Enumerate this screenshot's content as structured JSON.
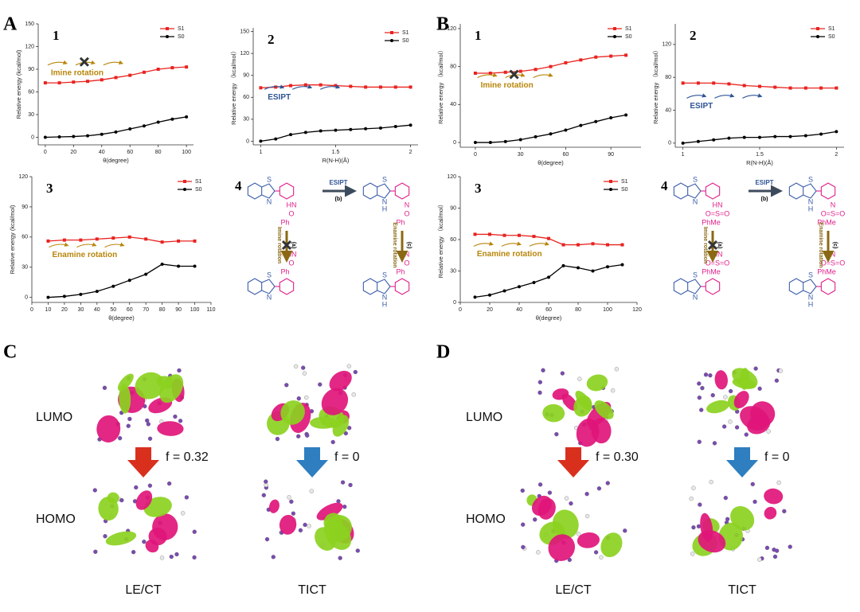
{
  "panel_labels": [
    "A",
    "B",
    "C",
    "D"
  ],
  "chart_data": [
    {
      "type": "line",
      "number": "1",
      "xlabel": "θ(degree)",
      "ylabel": "Relative energy (kcal/mol)",
      "x": [
        0,
        10,
        20,
        30,
        40,
        50,
        60,
        70,
        80,
        90,
        100
      ],
      "xlim": [
        -5,
        105
      ],
      "xticks": [
        0,
        20,
        40,
        60,
        80,
        100
      ],
      "ylim": [
        -10,
        150
      ],
      "yticks": [
        0,
        30,
        60,
        90,
        120,
        150
      ],
      "legend": "upper right",
      "annotation": {
        "text": "Imine rotation",
        "color": "#b8860b"
      },
      "series": [
        {
          "name": "S1",
          "color": "#e8231f",
          "marker": "square",
          "values": [
            72,
            72,
            73,
            74,
            76,
            79,
            82,
            86,
            90,
            92,
            93
          ]
        },
        {
          "name": "S0",
          "color": "#000000",
          "marker": "circle",
          "values": [
            0,
            0.5,
            1,
            2,
            4,
            7,
            11,
            15,
            20,
            24,
            27
          ]
        }
      ]
    },
    {
      "type": "line",
      "number": "2",
      "xlabel": "R(N-H)(Å)",
      "ylabel": "Relative energy （kcal/mol）",
      "x": [
        1.0,
        1.1,
        1.2,
        1.3,
        1.4,
        1.5,
        1.6,
        1.7,
        1.8,
        1.9,
        2.0
      ],
      "xlim": [
        0.95,
        2.05
      ],
      "xticks": [
        1.0,
        1.5,
        2.0
      ],
      "ylim": [
        -5,
        155
      ],
      "yticks": [
        0,
        30,
        60,
        90,
        120,
        150
      ],
      "legend": "upper right",
      "annotation": {
        "text": "ESIPT",
        "color": "#2f5597"
      },
      "series": [
        {
          "name": "S1",
          "color": "#e8231f",
          "marker": "square",
          "values": [
            73,
            74,
            76,
            77,
            77,
            76,
            75,
            74,
            74,
            74,
            74
          ]
        },
        {
          "name": "S0",
          "color": "#000000",
          "marker": "circle",
          "values": [
            0,
            3,
            9,
            12,
            14,
            15,
            16,
            17,
            18,
            20,
            22
          ]
        }
      ]
    },
    {
      "type": "line",
      "number": "1",
      "xlabel": "θ(degree)",
      "ylabel": "Relative energy （kcal/mol）",
      "x": [
        0,
        10,
        20,
        30,
        40,
        50,
        60,
        70,
        80,
        90,
        100
      ],
      "xlim": [
        -10,
        110
      ],
      "xticks": [
        0,
        30,
        60,
        90
      ],
      "ylim": [
        -5,
        125
      ],
      "yticks": [
        0,
        40,
        80,
        120
      ],
      "legend": "upper right",
      "annotation": {
        "text": "Imine rotation",
        "color": "#b8860b"
      },
      "series": [
        {
          "name": "S1",
          "color": "#e8231f",
          "marker": "square",
          "values": [
            73,
            73,
            74,
            75,
            77,
            80,
            84,
            87,
            90,
            91,
            92
          ]
        },
        {
          "name": "S0",
          "color": "#000000",
          "marker": "circle",
          "values": [
            0,
            0,
            1,
            3,
            6,
            9,
            13,
            18,
            22,
            26,
            29
          ]
        }
      ]
    },
    {
      "type": "line",
      "number": "2",
      "xlabel": "R(N-H)(Å)",
      "ylabel": "Relative energy （kcal/mol）",
      "x": [
        1.0,
        1.1,
        1.2,
        1.3,
        1.4,
        1.5,
        1.6,
        1.7,
        1.8,
        1.9,
        2.0
      ],
      "xlim": [
        0.95,
        2.05
      ],
      "xticks": [
        1.0,
        1.5,
        2.0
      ],
      "ylim": [
        -5,
        145
      ],
      "yticks": [
        0,
        40,
        80,
        120
      ],
      "legend": "upper right",
      "annotation": {
        "text": "ESIPT",
        "color": "#2f5597"
      },
      "series": [
        {
          "name": "S1",
          "color": "#e8231f",
          "marker": "square",
          "values": [
            73,
            73,
            73,
            72,
            70,
            69,
            68,
            67,
            67,
            67,
            67
          ]
        },
        {
          "name": "S0",
          "color": "#000000",
          "marker": "circle",
          "values": [
            0,
            2,
            4,
            6,
            7,
            7,
            8,
            8,
            9,
            11,
            14
          ]
        }
      ]
    },
    {
      "type": "line",
      "number": "3",
      "xlabel": "θ(degree)",
      "ylabel": "Relative energy (kcal/mol)",
      "x": [
        10,
        20,
        30,
        40,
        50,
        60,
        70,
        80,
        90,
        100
      ],
      "xlim": [
        0,
        110
      ],
      "xticks": [
        0,
        10,
        20,
        30,
        40,
        50,
        60,
        70,
        80,
        90,
        100,
        110
      ],
      "ylim": [
        -5,
        120
      ],
      "yticks": [
        0,
        30,
        60,
        90,
        120
      ],
      "legend": "upper right",
      "annotation": {
        "text": "Enamine rotation",
        "color": "#b8860b"
      },
      "series": [
        {
          "name": "S1",
          "color": "#e8231f",
          "marker": "square",
          "values": [
            56,
            57,
            57,
            58,
            59,
            60,
            58,
            55,
            56,
            56
          ]
        },
        {
          "name": "S0",
          "color": "#000000",
          "marker": "circle",
          "values": [
            0,
            1,
            3,
            6,
            11,
            17,
            23,
            33,
            31,
            31
          ]
        }
      ]
    },
    {
      "type": "line",
      "number": "3",
      "xlabel": "θ(degree)",
      "ylabel": "Relative energy （kcal/mol）",
      "x": [
        10,
        20,
        30,
        40,
        50,
        60,
        70,
        80,
        90,
        100,
        110
      ],
      "xlim": [
        0,
        120
      ],
      "xticks": [
        0,
        20,
        40,
        60,
        80,
        100,
        120
      ],
      "ylim": [
        0,
        120
      ],
      "yticks": [
        0,
        30,
        60,
        90,
        120
      ],
      "legend": "upper right",
      "annotation": {
        "text": "Enamine rotation",
        "color": "#b8860b"
      },
      "series": [
        {
          "name": "S1",
          "color": "#e8231f",
          "marker": "square",
          "values": [
            65,
            65,
            64,
            64,
            63,
            61,
            55,
            55,
            56,
            55,
            55
          ]
        },
        {
          "name": "S0",
          "color": "#000000",
          "marker": "circle",
          "values": [
            5,
            7,
            11,
            15,
            19,
            24,
            35,
            33,
            30,
            34,
            36
          ]
        }
      ]
    }
  ],
  "schemes": [
    {
      "number": "4",
      "top_arrow": "ESIPT",
      "top_tag": "(b)",
      "left_arrow": "Imine rotation",
      "left_tag": "(a)",
      "right_arrow": "Enamine rotation",
      "right_tag": "(c)",
      "molecules": [
        {
          "ring": [
            "S",
            "N"
          ],
          "side": [
            "HN",
            "O",
            "Ph"
          ]
        },
        {
          "ring": [
            "S",
            "N",
            "H"
          ],
          "side": [
            "N",
            "O",
            "Ph"
          ]
        },
        {
          "ring": [
            "S",
            "N"
          ],
          "side": [
            "HN",
            "O",
            "Ph"
          ]
        },
        {
          "ring": [
            "S",
            "N",
            "H"
          ],
          "side": [
            "N",
            "O",
            "Ph"
          ]
        }
      ]
    },
    {
      "number": "4",
      "top_arrow": "ESIPT",
      "top_tag": "(b)",
      "left_arrow": "Imine rotation",
      "left_tag": "(a)",
      "right_arrow": "Enamine rotation",
      "right_tag": "(c)",
      "molecules": [
        {
          "ring": [
            "S",
            "N"
          ],
          "side": [
            "HN",
            "O=S=O",
            "PhMe"
          ]
        },
        {
          "ring": [
            "S",
            "N",
            "H"
          ],
          "side": [
            "N",
            "O=S=O",
            "PhMe"
          ]
        },
        {
          "ring": [
            "S",
            "N"
          ],
          "side": [
            "HN",
            "O=S=O",
            "PhMe"
          ]
        },
        {
          "ring": [
            "S",
            "N",
            "H"
          ],
          "side": [
            "N",
            "O=S=O",
            "PhMe"
          ]
        }
      ]
    }
  ],
  "orbitals": [
    {
      "lumo": "LUMO",
      "homo": "HOMO",
      "states": [
        {
          "f": "f = 0.32",
          "label": "LE/CT",
          "color": "#d9301e"
        },
        {
          "f": "f = 0",
          "label": "TICT",
          "color": "#2e7ec0"
        }
      ]
    },
    {
      "lumo": "LUMO",
      "homo": "HOMO",
      "states": [
        {
          "f": "f = 0.30",
          "label": "LE/CT",
          "color": "#d9301e"
        },
        {
          "f": "f = 0",
          "label": "TICT",
          "color": "#2e7ec0"
        }
      ]
    }
  ]
}
